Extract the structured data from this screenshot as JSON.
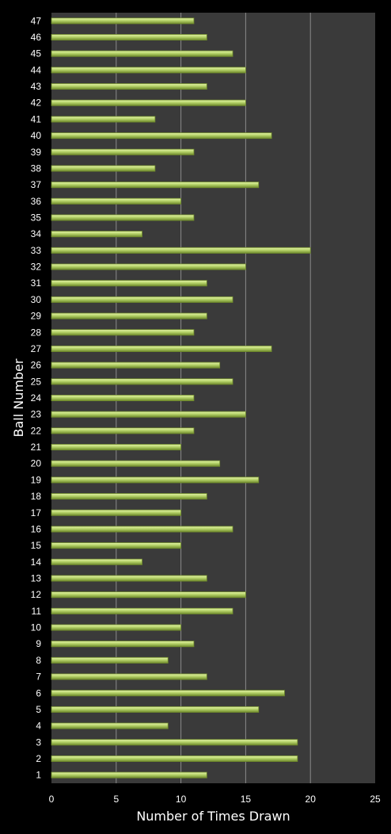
{
  "chart_data": {
    "type": "bar",
    "orientation": "horizontal",
    "xlabel": "Number of Times Drawn",
    "ylabel": "Ball Number",
    "xlim": [
      0,
      25
    ],
    "xticks": [
      0,
      5,
      10,
      15,
      20,
      25
    ],
    "grid": true,
    "colors": {
      "background": "#000000",
      "plot_area": "#3a3a3a",
      "gridline": "#8a8a8a",
      "bar_fill": "#b6d36a",
      "bar_highlight": "#e4f3a8",
      "bar_shadow": "#6f8a2c",
      "text": "#ffffff"
    },
    "categories": [
      "1",
      "2",
      "3",
      "4",
      "5",
      "6",
      "7",
      "8",
      "9",
      "10",
      "11",
      "12",
      "13",
      "14",
      "15",
      "16",
      "17",
      "18",
      "19",
      "20",
      "21",
      "22",
      "23",
      "24",
      "25",
      "26",
      "27",
      "28",
      "29",
      "30",
      "31",
      "32",
      "33",
      "34",
      "35",
      "36",
      "37",
      "38",
      "39",
      "40",
      "41",
      "42",
      "43",
      "44",
      "45",
      "46",
      "47"
    ],
    "values": [
      12,
      19,
      19,
      9,
      16,
      18,
      12,
      9,
      11,
      10,
      14,
      15,
      12,
      7,
      10,
      14,
      10,
      12,
      16,
      13,
      10,
      11,
      15,
      11,
      14,
      13,
      17,
      11,
      12,
      14,
      12,
      15,
      20,
      7,
      11,
      10,
      16,
      8,
      11,
      17,
      8,
      15,
      12,
      15,
      14,
      12,
      11
    ]
  }
}
